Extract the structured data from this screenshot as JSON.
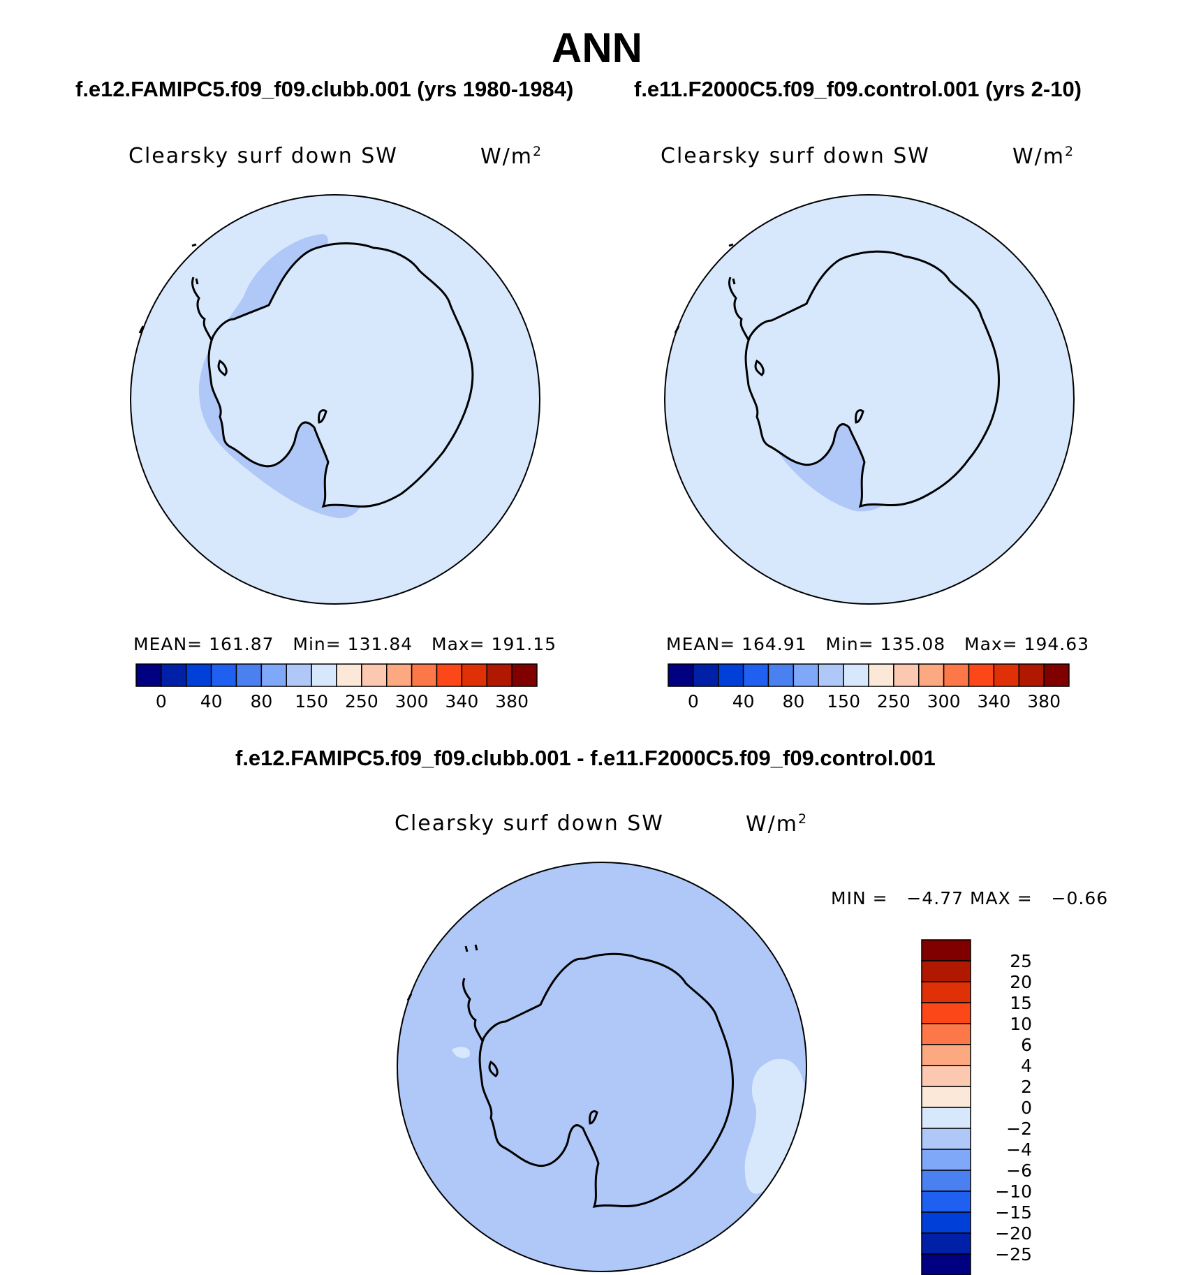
{
  "title": "ANN",
  "panels": [
    {
      "case_title": "f.e12.FAMIPC5.f09_f09.clubb.001 (yrs 1980-1984)",
      "variable": "Clearsky surf down SW",
      "units": "W/m",
      "units_exp": "2",
      "stats": {
        "mean_label": "MEAN=",
        "mean": "161.87",
        "min_label": "Min=",
        "min": "131.84",
        "max_label": "Max=",
        "max": "191.15"
      }
    },
    {
      "case_title": "f.e11.F2000C5.f09_f09.control.001 (yrs 2-10)",
      "variable": "Clearsky surf down SW",
      "units": "W/m",
      "units_exp": "2",
      "stats": {
        "mean_label": "MEAN=",
        "mean": "164.91",
        "min_label": "Min=",
        "min": "135.08",
        "max_label": "Max=",
        "max": "194.63"
      }
    }
  ],
  "colorbar_top": {
    "colors": [
      "#000080",
      "#0020a8",
      "#0040d8",
      "#2060f0",
      "#4a80f0",
      "#80a8f8",
      "#b0c8f8",
      "#d8e8fc",
      "#fce8d8",
      "#fcc8b0",
      "#fca880",
      "#fc7848",
      "#fc4818",
      "#e03008",
      "#b01800",
      "#800000"
    ],
    "labels": [
      "0",
      "40",
      "80",
      "150",
      "250",
      "300",
      "340",
      "380"
    ]
  },
  "diff": {
    "title": "f.e12.FAMIPC5.f09_f09.clubb.001 - f.e11.F2000C5.f09_f09.control.001",
    "variable": "Clearsky surf down SW",
    "units": "W/m",
    "units_exp": "2",
    "min_label": "MIN =",
    "min": "−4.77",
    "max_label": "MAX =",
    "max": "−0.66"
  },
  "colorbar_diff": {
    "colors": [
      "#800000",
      "#b01800",
      "#e03008",
      "#fc4818",
      "#fc7848",
      "#fca880",
      "#fcc8b0",
      "#fce8d8",
      "#d8e8fc",
      "#b0c8f8",
      "#80a8f8",
      "#4a80f0",
      "#2060f0",
      "#0040d8",
      "#0020a8",
      "#000080"
    ],
    "labels": [
      "25",
      "20",
      "15",
      "10",
      "6",
      "4",
      "2",
      "0",
      "−2",
      "−4",
      "−6",
      "−10",
      "−15",
      "−20",
      "−25"
    ]
  },
  "map_colors": {
    "light": "#d8e8fc",
    "mid": "#b0c8f8",
    "dark": "#80a8f8"
  }
}
